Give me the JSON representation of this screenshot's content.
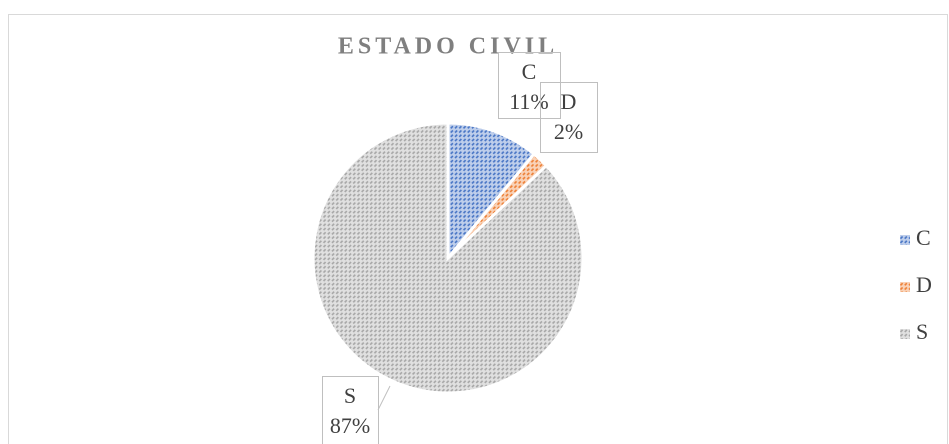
{
  "chart_data": {
    "type": "pie",
    "title": "ESTADO CIVIL",
    "categories": [
      "C",
      "D",
      "S"
    ],
    "values": [
      11,
      2,
      87
    ],
    "value_labels": [
      "11%",
      "2%",
      "87%"
    ],
    "colors": [
      "#4472c4",
      "#ed7d31",
      "#a5a5a5"
    ],
    "legend": "right"
  }
}
